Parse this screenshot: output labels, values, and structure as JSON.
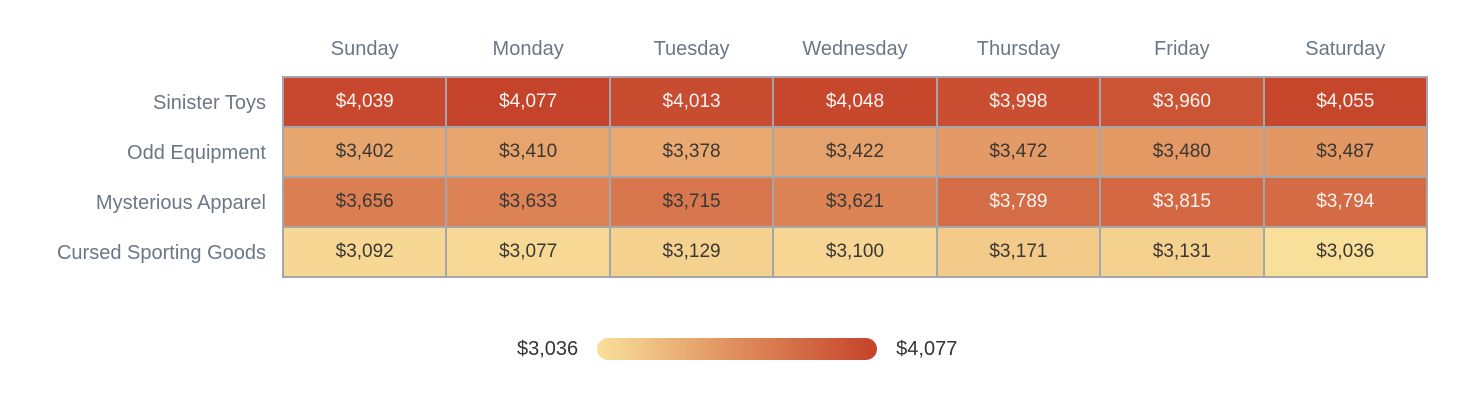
{
  "chart_data": {
    "type": "heatmap",
    "categories_x": [
      "Sunday",
      "Monday",
      "Tuesday",
      "Wednesday",
      "Thursday",
      "Friday",
      "Saturday"
    ],
    "categories_y": [
      "Sinister Toys",
      "Odd Equipment",
      "Mysterious Apparel",
      "Cursed Sporting Goods"
    ],
    "series": [
      {
        "name": "Sinister Toys",
        "values": [
          4039,
          4077,
          4013,
          4048,
          3998,
          3960,
          4055
        ]
      },
      {
        "name": "Odd Equipment",
        "values": [
          3402,
          3410,
          3378,
          3422,
          3472,
          3480,
          3487
        ]
      },
      {
        "name": "Mysterious Apparel",
        "values": [
          3656,
          3633,
          3715,
          3621,
          3789,
          3815,
          3794
        ]
      },
      {
        "name": "Cursed Sporting Goods",
        "values": [
          3092,
          3077,
          3129,
          3100,
          3171,
          3131,
          3036
        ]
      }
    ],
    "value_prefix": "$",
    "color_scale": {
      "min": 3036,
      "max": 4077,
      "stops": [
        "#f9e09a",
        "#e08d5c",
        "#c5432a"
      ]
    },
    "legend": {
      "position": "bottom",
      "min_label": "$3,036",
      "max_label": "$4,077"
    },
    "grid": false
  },
  "colors": {
    "background": "#ffffff",
    "header_text": "#6b7785",
    "row_label_text": "#6b7785",
    "cell_text_dark": "#3a3734",
    "cell_text_light": "#f7f3f0",
    "grid_border": "#a3a7ad",
    "legend_text": "#333333"
  }
}
